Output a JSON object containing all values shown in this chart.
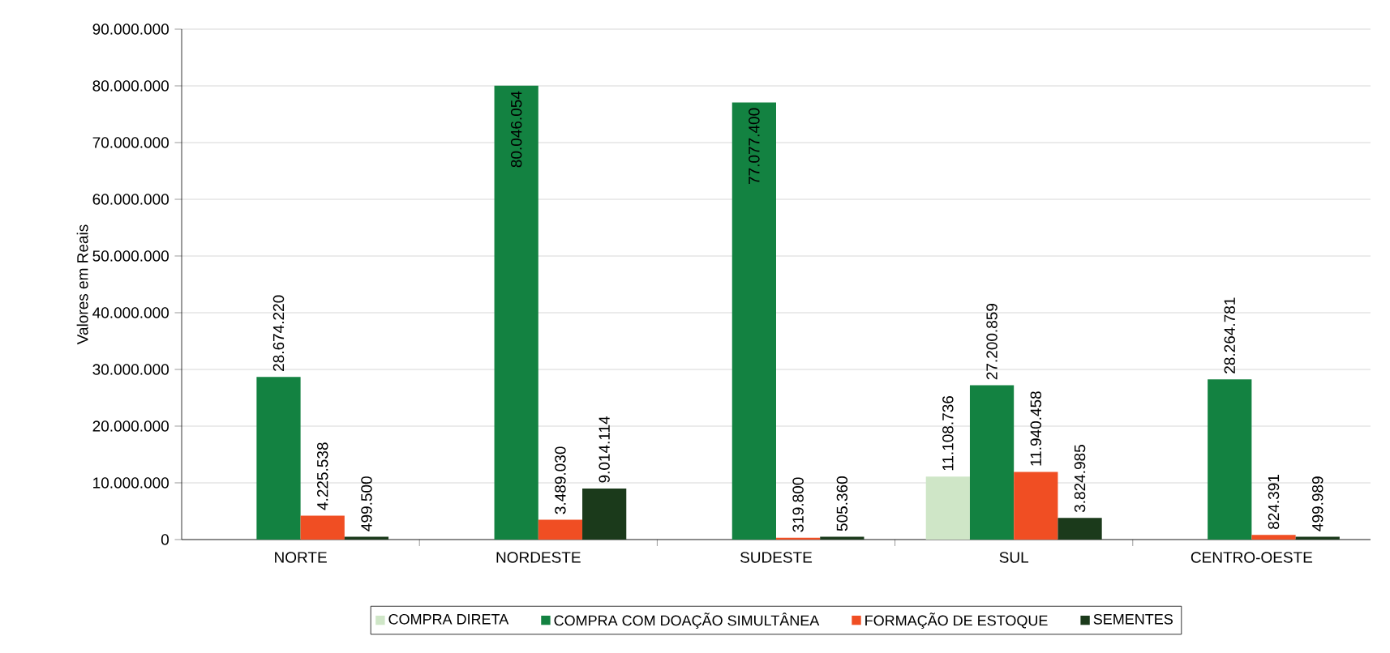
{
  "chart_data": {
    "type": "bar",
    "ylabel": "Valores em Reais",
    "categories": [
      "NORTE",
      "NORDESTE",
      "SUDESTE",
      "SUL",
      "CENTRO-OESTE"
    ],
    "series": [
      {
        "name": "COMPRA DIRETA",
        "color": "#cfe6c7",
        "values": [
          null,
          null,
          null,
          11108736,
          null
        ],
        "value_labels": [
          null,
          null,
          null,
          "11.108.736",
          null
        ]
      },
      {
        "name": "COMPRA COM DOAÇÃO SIMULTÂNEA",
        "color": "#138241",
        "values": [
          28674220,
          80046054,
          77077400,
          27200859,
          28264781
        ],
        "value_labels": [
          "28.674.220",
          "80.046.054",
          "77.077.400",
          "27.200.859",
          "28.264.781"
        ]
      },
      {
        "name": "FORMAÇÃO DE ESTOQUE",
        "color": "#f04e23",
        "values": [
          4225538,
          3489030,
          319800,
          11940458,
          824391
        ],
        "value_labels": [
          "4.225.538",
          "3.489.030",
          "319.800",
          "11.940.458",
          "824.391"
        ]
      },
      {
        "name": "SEMENTES",
        "color": "#1b3a1b",
        "values": [
          499500,
          9014114,
          505360,
          3824985,
          499989
        ],
        "value_labels": [
          "499.500",
          "9.014.114",
          "505.360",
          "3.824.985",
          "499.989"
        ]
      }
    ],
    "ylim": [
      0,
      90000000
    ],
    "yticks": [
      {
        "value": 0,
        "label": "0"
      },
      {
        "value": 10000000,
        "label": "10.000.000"
      },
      {
        "value": 20000000,
        "label": "20.000.000"
      },
      {
        "value": 30000000,
        "label": "30.000.000"
      },
      {
        "value": 40000000,
        "label": "40.000.000"
      },
      {
        "value": 50000000,
        "label": "50.000.000"
      },
      {
        "value": 60000000,
        "label": "60.000.000"
      },
      {
        "value": 70000000,
        "label": "70.000.000"
      },
      {
        "value": 80000000,
        "label": "80.000.000"
      },
      {
        "value": 90000000,
        "label": "90.000.000"
      }
    ],
    "grid": "y",
    "legend": "bottom"
  }
}
